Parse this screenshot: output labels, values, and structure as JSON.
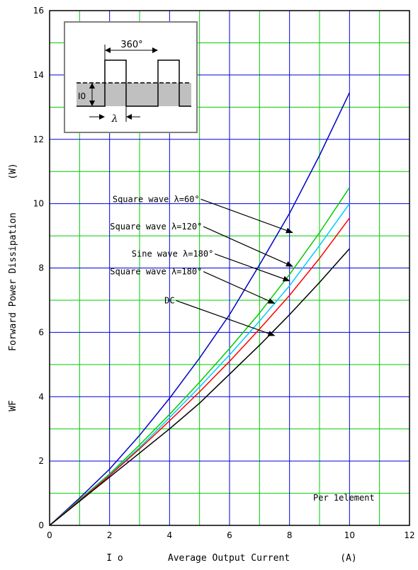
{
  "chart_data": {
    "type": "line",
    "xlabel_prefix": "I o",
    "xlabel": "Average Output Current",
    "xlabel_unit": "(A)",
    "ylabel_prefix": "WF",
    "ylabel": "Forward Power Dissipation",
    "ylabel_unit": "(W)",
    "xlim": [
      0,
      12
    ],
    "ylim": [
      0,
      16
    ],
    "x_ticks": [
      0,
      2,
      4,
      6,
      8,
      10,
      12
    ],
    "y_ticks": [
      0,
      2,
      4,
      6,
      8,
      10,
      12,
      14,
      16
    ],
    "grid": true,
    "note": "Per 1element",
    "inset": {
      "period_label": "360°",
      "current_label": "I0",
      "width_label": "λ"
    },
    "series": [
      {
        "name": "Square wave λ=60°",
        "color": "#0000cc",
        "x": [
          0,
          1,
          2,
          3,
          4,
          5,
          6,
          7,
          8,
          9,
          10
        ],
        "y": [
          0,
          0.85,
          1.75,
          2.8,
          3.95,
          5.2,
          6.55,
          8.1,
          9.7,
          11.5,
          13.45
        ]
      },
      {
        "name": "Square wave λ=120°",
        "color": "#00cc00",
        "x": [
          0,
          1,
          2,
          3,
          4,
          5,
          6,
          7,
          8,
          9,
          10
        ],
        "y": [
          0,
          0.8,
          1.6,
          2.5,
          3.45,
          4.45,
          5.5,
          6.6,
          7.8,
          9.1,
          10.5
        ]
      },
      {
        "name": "Sine wave λ=180°",
        "color": "#00ccff",
        "x": [
          0,
          1,
          2,
          3,
          4,
          5,
          6,
          7,
          8,
          9,
          10
        ],
        "y": [
          0,
          0.78,
          1.57,
          2.42,
          3.35,
          4.3,
          5.3,
          6.35,
          7.45,
          8.7,
          10.0
        ]
      },
      {
        "name": "Square wave λ=180°",
        "color": "#ff0000",
        "x": [
          0,
          1,
          2,
          3,
          4,
          5,
          6,
          7,
          8,
          9,
          10
        ],
        "y": [
          0,
          0.77,
          1.55,
          2.38,
          3.25,
          4.15,
          5.1,
          6.1,
          7.15,
          8.3,
          9.55
        ]
      },
      {
        "name": "DC",
        "color": "#000000",
        "x": [
          0,
          1,
          2,
          3,
          4,
          5,
          6,
          7,
          8,
          9,
          10
        ],
        "y": [
          0,
          0.75,
          1.5,
          2.25,
          3.0,
          3.8,
          4.7,
          5.6,
          6.55,
          7.55,
          8.6
        ]
      }
    ],
    "annotations": [
      {
        "text": "Square wave λ=60°",
        "series": 0,
        "label_xy": [
          3.55,
          10.05
        ],
        "arrow_to": [
          8.1,
          9.1
        ]
      },
      {
        "text": "Square wave λ=120°",
        "series": 1,
        "label_xy": [
          3.55,
          9.2
        ],
        "arrow_to": [
          8.1,
          8.05
        ]
      },
      {
        "text": "Sine wave λ=180°",
        "series": 2,
        "label_xy": [
          4.1,
          8.35
        ],
        "arrow_to": [
          8.0,
          7.6
        ]
      },
      {
        "text": "Square wave λ=180°",
        "series": 3,
        "label_xy": [
          3.55,
          7.8
        ],
        "arrow_to": [
          7.5,
          6.9
        ]
      },
      {
        "text": "DC",
        "series": 4,
        "label_xy": [
          4.0,
          6.9
        ],
        "arrow_to": [
          7.5,
          5.9
        ]
      }
    ]
  }
}
